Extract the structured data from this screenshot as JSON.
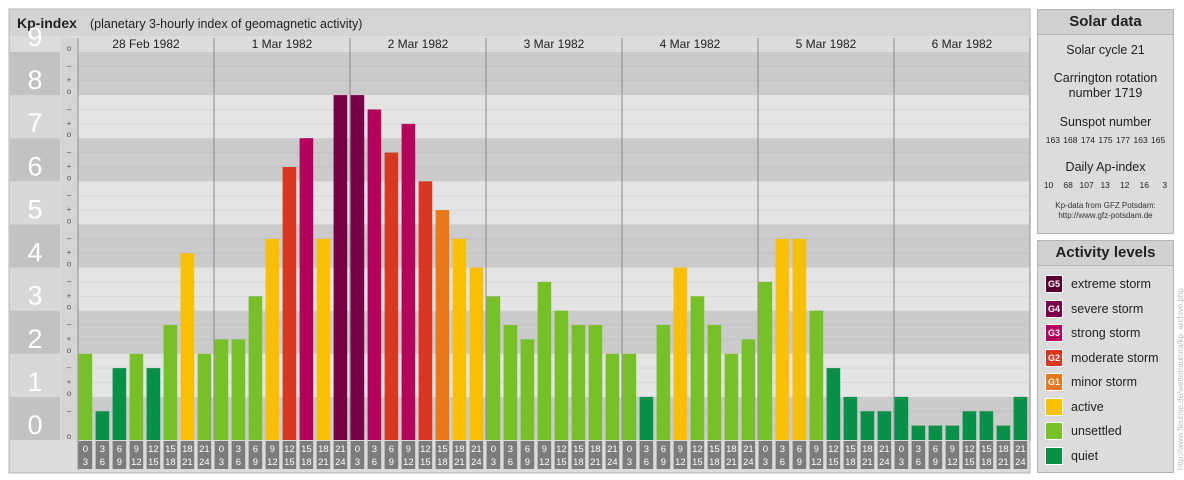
{
  "header": {
    "title": "Kp-index",
    "subtitle": "(planetary 3-hourly index of geomagnetic activity)"
  },
  "chart_data": {
    "type": "bar",
    "title": "Kp-index",
    "subtitle": "(planetary 3-hourly index of geomagnetic activity)",
    "ylim": [
      0,
      9
    ],
    "y_ticks": [
      "0",
      "1",
      "2",
      "3",
      "4",
      "5",
      "6",
      "7",
      "8",
      "9"
    ],
    "sub_ticks": [
      "o",
      "+",
      "–"
    ],
    "days": [
      "28 Feb 1982",
      "1 Mar 1982",
      "2 Mar 1982",
      "3 Mar 1982",
      "4 Mar 1982",
      "5 Mar 1982",
      "6 Mar 1982"
    ],
    "intervals": [
      [
        "0",
        "3"
      ],
      [
        "3",
        "6"
      ],
      [
        "6",
        "9"
      ],
      [
        "9",
        "12"
      ],
      [
        "12",
        "15"
      ],
      [
        "15",
        "18"
      ],
      [
        "18",
        "21"
      ],
      [
        "21",
        "24"
      ]
    ],
    "values": [
      2,
      0.667,
      1.667,
      2,
      1.667,
      2.667,
      4.333,
      2,
      2.333,
      2.333,
      3.333,
      4.667,
      6.333,
      7,
      4.667,
      8,
      8,
      7.667,
      6.667,
      7.333,
      6,
      5.333,
      4.667,
      4,
      3.333,
      2.667,
      2.333,
      3.667,
      3,
      2.667,
      2.667,
      2,
      2,
      1,
      2.667,
      4,
      3.333,
      2.667,
      2,
      2.333,
      3.667,
      4.667,
      4.667,
      3,
      1.667,
      1,
      0.667,
      0.667,
      1,
      0.333,
      0.333,
      0.333,
      0.667,
      0.667,
      0.333,
      1
    ],
    "grid": true
  },
  "solar": {
    "title": "Solar data",
    "cycle": "Solar cycle 21",
    "carrington_1": "Carrington rotation",
    "carrington_2": "number 1719",
    "sunspot_label": "Sunspot number",
    "sunspot_values": "163 168 174 175 177 163 165",
    "ap_label": "Daily Ap-index",
    "ap_values": "10   68  107  13   12   16    3",
    "source_1": "Kp-data from GFZ Potsdam:",
    "source_2": "http://www.gfz-potsdam.de"
  },
  "levels": {
    "title": "Activity levels",
    "items": [
      {
        "badge": "G5",
        "label": "extreme storm",
        "color": "#5a0030"
      },
      {
        "badge": "G4",
        "label": "severe storm",
        "color": "#780048"
      },
      {
        "badge": "G3",
        "label": "strong storm",
        "color": "#b4005a"
      },
      {
        "badge": "G2",
        "label": "moderate storm",
        "color": "#d83820"
      },
      {
        "badge": "G1",
        "label": "minor storm",
        "color": "#e87818"
      },
      {
        "badge": "",
        "label": "active",
        "color": "#f8c000"
      },
      {
        "badge": "",
        "label": "unsettled",
        "color": "#78c028"
      },
      {
        "badge": "",
        "label": "quiet",
        "color": "#089048"
      }
    ]
  },
  "watermark": "http://www.fleuhse.de/wetter/aurora/kp_archive.php"
}
